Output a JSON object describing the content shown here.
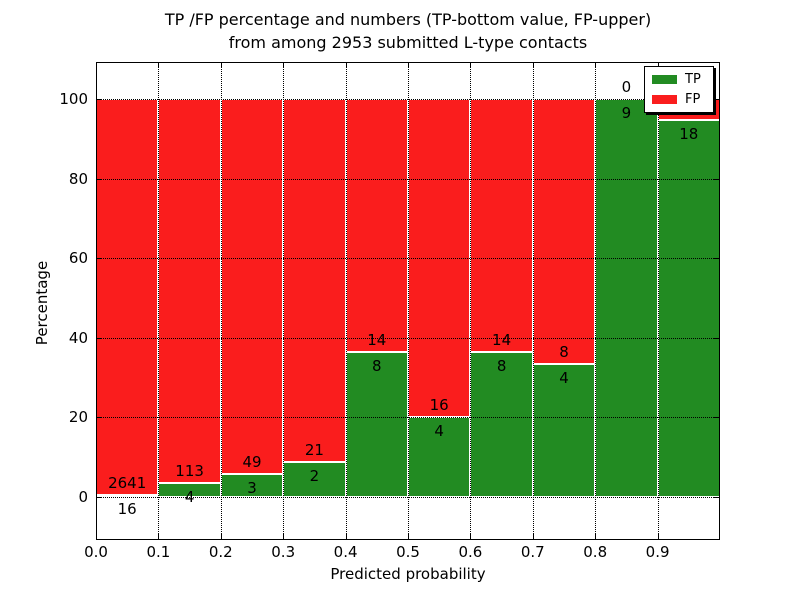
{
  "chart_data": {
    "type": "bar",
    "stacked": true,
    "title_lines": [
      "TP /FP percentage and numbers (TP-bottom value, FP-upper)",
      "from among 2953 submitted L-type contacts"
    ],
    "xlabel": "Predicted probability",
    "ylabel": "Percentage",
    "x_tick_labels": [
      "0.0",
      "0.1",
      "0.2",
      "0.3",
      "0.4",
      "0.5",
      "0.6",
      "0.7",
      "0.8",
      "0.9"
    ],
    "y_tick_values": [
      0,
      20,
      40,
      60,
      80,
      100
    ],
    "xlim": [
      0.0,
      1.0
    ],
    "ylim": [
      -11,
      110
    ],
    "grid": true,
    "grid_style": "dotted",
    "total_contacts": 2953,
    "colors": {
      "tp": "#228b22",
      "fp": "#fa1d1d"
    },
    "legend": {
      "position": "upper-right",
      "entries": [
        {
          "label": "TP",
          "color": "#228b22"
        },
        {
          "label": "FP",
          "color": "#fa1d1d"
        }
      ]
    },
    "bars": [
      {
        "x_range": "0.0-0.1",
        "tp_count": 16,
        "fp_count": 2641,
        "tp_label": "16",
        "fp_label": "2641",
        "tp_pct": 0.6,
        "fp_pct": 99.4
      },
      {
        "x_range": "0.1-0.2",
        "tp_count": 4,
        "fp_count": 113,
        "tp_label": "4",
        "fp_label": "113",
        "tp_pct": 3.4,
        "fp_pct": 96.6
      },
      {
        "x_range": "0.2-0.3",
        "tp_count": 3,
        "fp_count": 49,
        "tp_label": "3",
        "fp_label": "49",
        "tp_pct": 5.8,
        "fp_pct": 94.2
      },
      {
        "x_range": "0.3-0.4",
        "tp_count": 2,
        "fp_count": 21,
        "tp_label": "2",
        "fp_label": "21",
        "tp_pct": 8.7,
        "fp_pct": 91.3
      },
      {
        "x_range": "0.4-0.5",
        "tp_count": 8,
        "fp_count": 14,
        "tp_label": "8",
        "fp_label": "14",
        "tp_pct": 36.4,
        "fp_pct": 63.6
      },
      {
        "x_range": "0.5-0.6",
        "tp_count": 4,
        "fp_count": 16,
        "tp_label": "4",
        "fp_label": "16",
        "tp_pct": 20.0,
        "fp_pct": 80.0
      },
      {
        "x_range": "0.6-0.7",
        "tp_count": 8,
        "fp_count": 14,
        "tp_label": "8",
        "fp_label": "14",
        "tp_pct": 36.4,
        "fp_pct": 63.6
      },
      {
        "x_range": "0.7-0.8",
        "tp_count": 4,
        "fp_count": 8,
        "tp_label": "4",
        "fp_label": "8",
        "tp_pct": 33.3,
        "fp_pct": 66.7
      },
      {
        "x_range": "0.8-0.9",
        "tp_count": 9,
        "fp_count": 0,
        "tp_label": "9",
        "fp_label": "0",
        "tp_pct": 100.0,
        "fp_pct": 0.0
      },
      {
        "x_range": "0.9-1.0",
        "tp_count": 18,
        "tp_label": "18",
        "fp_label": "",
        "tp_pct": 94.7,
        "fp_pct": 5.3
      }
    ]
  }
}
